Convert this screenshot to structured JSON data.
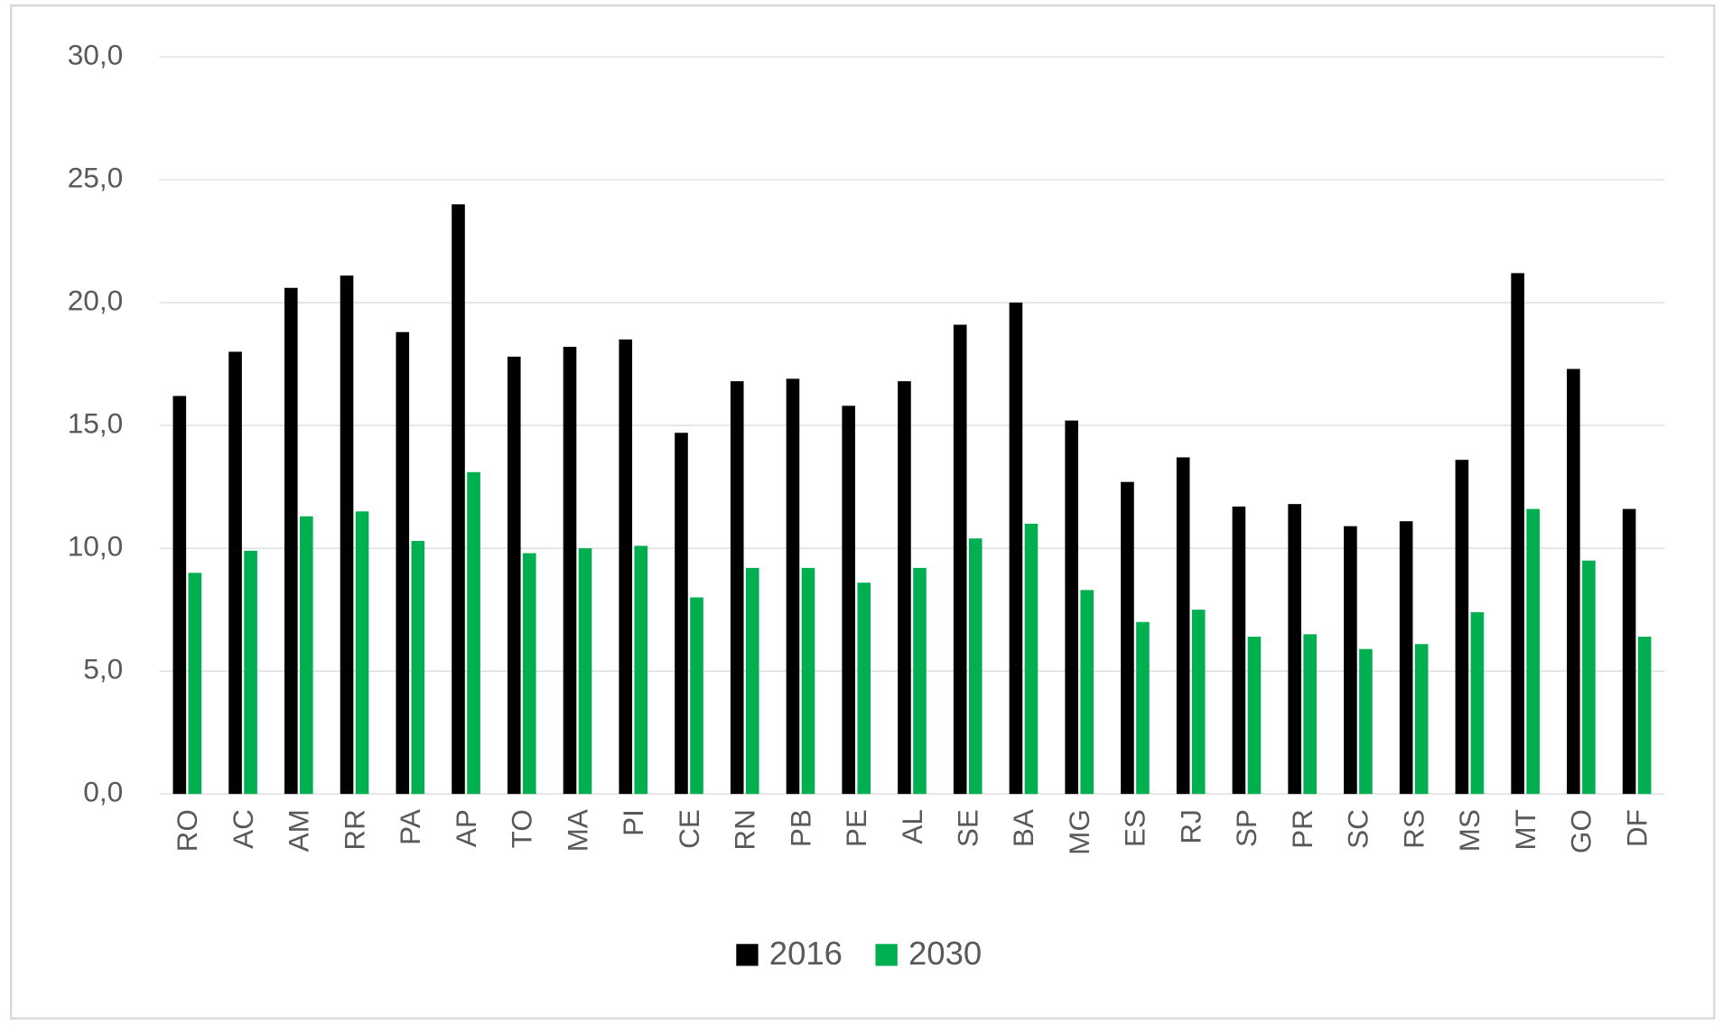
{
  "chart_data": {
    "type": "bar",
    "categories": [
      "RO",
      "AC",
      "AM",
      "RR",
      "PA",
      "AP",
      "TO",
      "MA",
      "PI",
      "CE",
      "RN",
      "PB",
      "PE",
      "AL",
      "SE",
      "BA",
      "MG",
      "ES",
      "RJ",
      "SP",
      "PR",
      "SC",
      "RS",
      "MS",
      "MT",
      "GO",
      "DF"
    ],
    "series": [
      {
        "name": "2016",
        "color": "#000000",
        "values": [
          16.2,
          18.0,
          20.6,
          21.1,
          18.8,
          24.0,
          17.8,
          18.2,
          18.5,
          14.7,
          16.8,
          16.9,
          15.8,
          16.8,
          19.1,
          20.0,
          15.2,
          12.7,
          13.7,
          11.7,
          11.8,
          10.9,
          11.1,
          13.6,
          21.2,
          17.3,
          11.6
        ]
      },
      {
        "name": "2030",
        "color": "#00b050",
        "values": [
          9.0,
          9.9,
          11.3,
          11.5,
          10.3,
          13.1,
          9.8,
          10.0,
          10.1,
          8.0,
          9.2,
          9.2,
          8.6,
          9.2,
          10.4,
          11.0,
          8.3,
          7.0,
          7.5,
          6.4,
          6.5,
          5.9,
          6.1,
          7.4,
          11.6,
          9.5,
          6.4
        ]
      }
    ],
    "ylim": [
      0,
      30
    ],
    "yticks": [
      {
        "value": 0,
        "label": "0,0"
      },
      {
        "value": 5,
        "label": "5,0"
      },
      {
        "value": 10,
        "label": "10,0"
      },
      {
        "value": 15,
        "label": "15,0"
      },
      {
        "value": 20,
        "label": "20,0"
      },
      {
        "value": 25,
        "label": "25,0"
      },
      {
        "value": 30,
        "label": "30,0"
      }
    ],
    "grid": true,
    "legend": "bottom"
  }
}
